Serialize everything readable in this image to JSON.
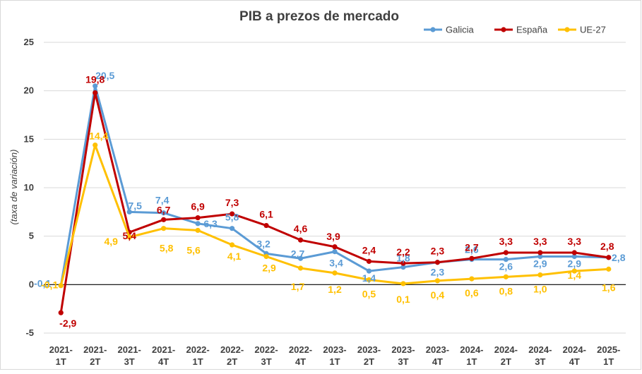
{
  "chart_data": {
    "type": "line",
    "title": "PIB a prezos de mercado",
    "ylabel": "(taxa de variación)",
    "xlabel": "",
    "ylim": [
      -5,
      25
    ],
    "yticks": [
      -5,
      0,
      5,
      10,
      15,
      20,
      25
    ],
    "ytick_labels": [
      "-5",
      "0",
      "5",
      "10",
      "15",
      "20",
      "25"
    ],
    "grid": "horizontal",
    "legend_position": "top-right",
    "categories": [
      [
        "2021-",
        "1T"
      ],
      [
        "2021-",
        "2T"
      ],
      [
        "2021-",
        "3T"
      ],
      [
        "2021-",
        "4T"
      ],
      [
        "2022-",
        "1T"
      ],
      [
        "2022-",
        "2T"
      ],
      [
        "2022-",
        "3T"
      ],
      [
        "2022-",
        "4T"
      ],
      [
        "2023-",
        "1T"
      ],
      [
        "2023-",
        "2T"
      ],
      [
        "2023-",
        "3T"
      ],
      [
        "2023-",
        "4T"
      ],
      [
        "2024-",
        "1T"
      ],
      [
        "2024-",
        "2T"
      ],
      [
        "2024-",
        "3T"
      ],
      [
        "2024-",
        "4T"
      ],
      [
        "2025-",
        "1T"
      ]
    ],
    "series": [
      {
        "name": "Galicia",
        "color": "#5B9BD5",
        "values": [
          -0.1,
          20.5,
          7.5,
          7.4,
          6.3,
          5.8,
          3.2,
          2.7,
          3.4,
          1.4,
          1.8,
          2.3,
          2.6,
          2.6,
          2.9,
          2.9,
          2.8
        ],
        "labels": [
          "-0,1",
          "20,5",
          "7,5",
          "7,4",
          "6,3",
          "5,8",
          "3,2",
          "2,7",
          "3,4",
          "1,4",
          "1,8",
          "2,3",
          "2,6",
          "2,6",
          "2,9",
          "2,9",
          "2,8"
        ]
      },
      {
        "name": "España",
        "color": "#C00000",
        "values": [
          -2.9,
          19.8,
          5.4,
          6.7,
          6.9,
          7.3,
          6.1,
          4.6,
          3.9,
          2.4,
          2.2,
          2.3,
          2.7,
          3.3,
          3.3,
          3.3,
          2.8
        ],
        "labels": [
          "-2,9",
          "19,8",
          "5,4",
          "6,7",
          "6,9",
          "7,3",
          "6,1",
          "4,6",
          "3,9",
          "2,4",
          "2,2",
          "2,3",
          "2,7",
          "3,3",
          "3,3",
          "3,3",
          "2,8"
        ]
      },
      {
        "name": "UE-27",
        "color": "#FFC000",
        "values": [
          -0.1,
          14.4,
          4.9,
          5.8,
          5.6,
          4.1,
          2.9,
          1.7,
          1.2,
          0.5,
          0.1,
          0.4,
          0.6,
          0.8,
          1.0,
          1.4,
          1.6
        ],
        "labels": [
          "-0,1",
          "14,4",
          "4,9",
          "5,8",
          "5,6",
          "4,1",
          "2,9",
          "1,7",
          "1,2",
          "0,5",
          "0,1",
          "0,4",
          "0,6",
          "0,8",
          "1,0",
          "1,4",
          "1,6"
        ]
      }
    ]
  }
}
